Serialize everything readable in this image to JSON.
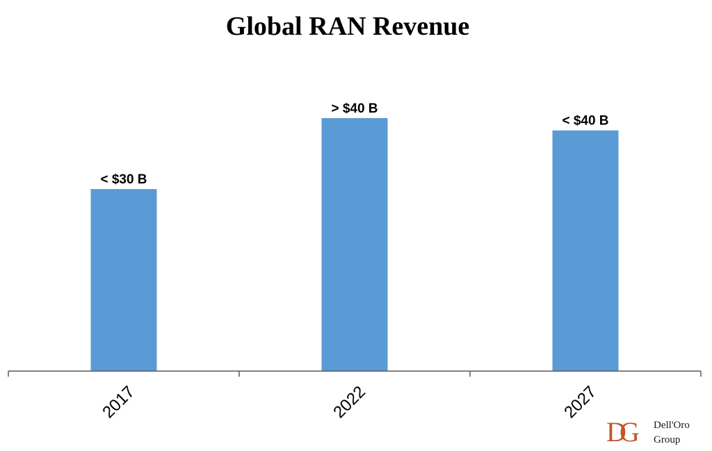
{
  "chart_data": {
    "type": "bar",
    "title": "Global RAN Revenue",
    "xlabel": "",
    "ylabel": "",
    "categories": [
      "2017",
      "2022",
      "2027"
    ],
    "values": [
      29.5,
      41,
      39
    ],
    "data_labels": [
      "< $30 B",
      "> $40 B",
      "< $40 B"
    ],
    "unit": "$B",
    "ylim": [
      0,
      50
    ],
    "grid": false,
    "legend": "none",
    "bar_color": "#5b9bd5",
    "axis_color": "#595959"
  },
  "logo": {
    "monogram": "DG",
    "line1": "Dell'Oro",
    "line2": "Group",
    "color": "#c0562b"
  }
}
